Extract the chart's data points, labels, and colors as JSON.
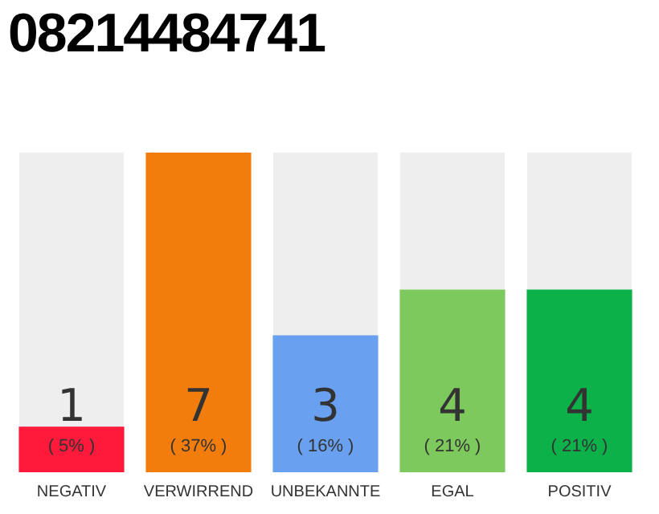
{
  "chart_data": {
    "type": "bar",
    "title": "08214484741",
    "categories": [
      "NEGATIV",
      "VERWIRREND",
      "UNBEKANNTE",
      "EGAL",
      "POSITIV"
    ],
    "values": [
      1,
      7,
      3,
      4,
      4
    ],
    "colors": [
      "#ff1a3c",
      "#f27d0c",
      "#6aa0f0",
      "#7dc95e",
      "#0cb14a"
    ],
    "data_labels": true,
    "annotations": [
      "( 5% )",
      "( 37% )",
      "( 16% )",
      "( 21% )",
      "( 21% )"
    ],
    "grid": false,
    "legend": false
  }
}
